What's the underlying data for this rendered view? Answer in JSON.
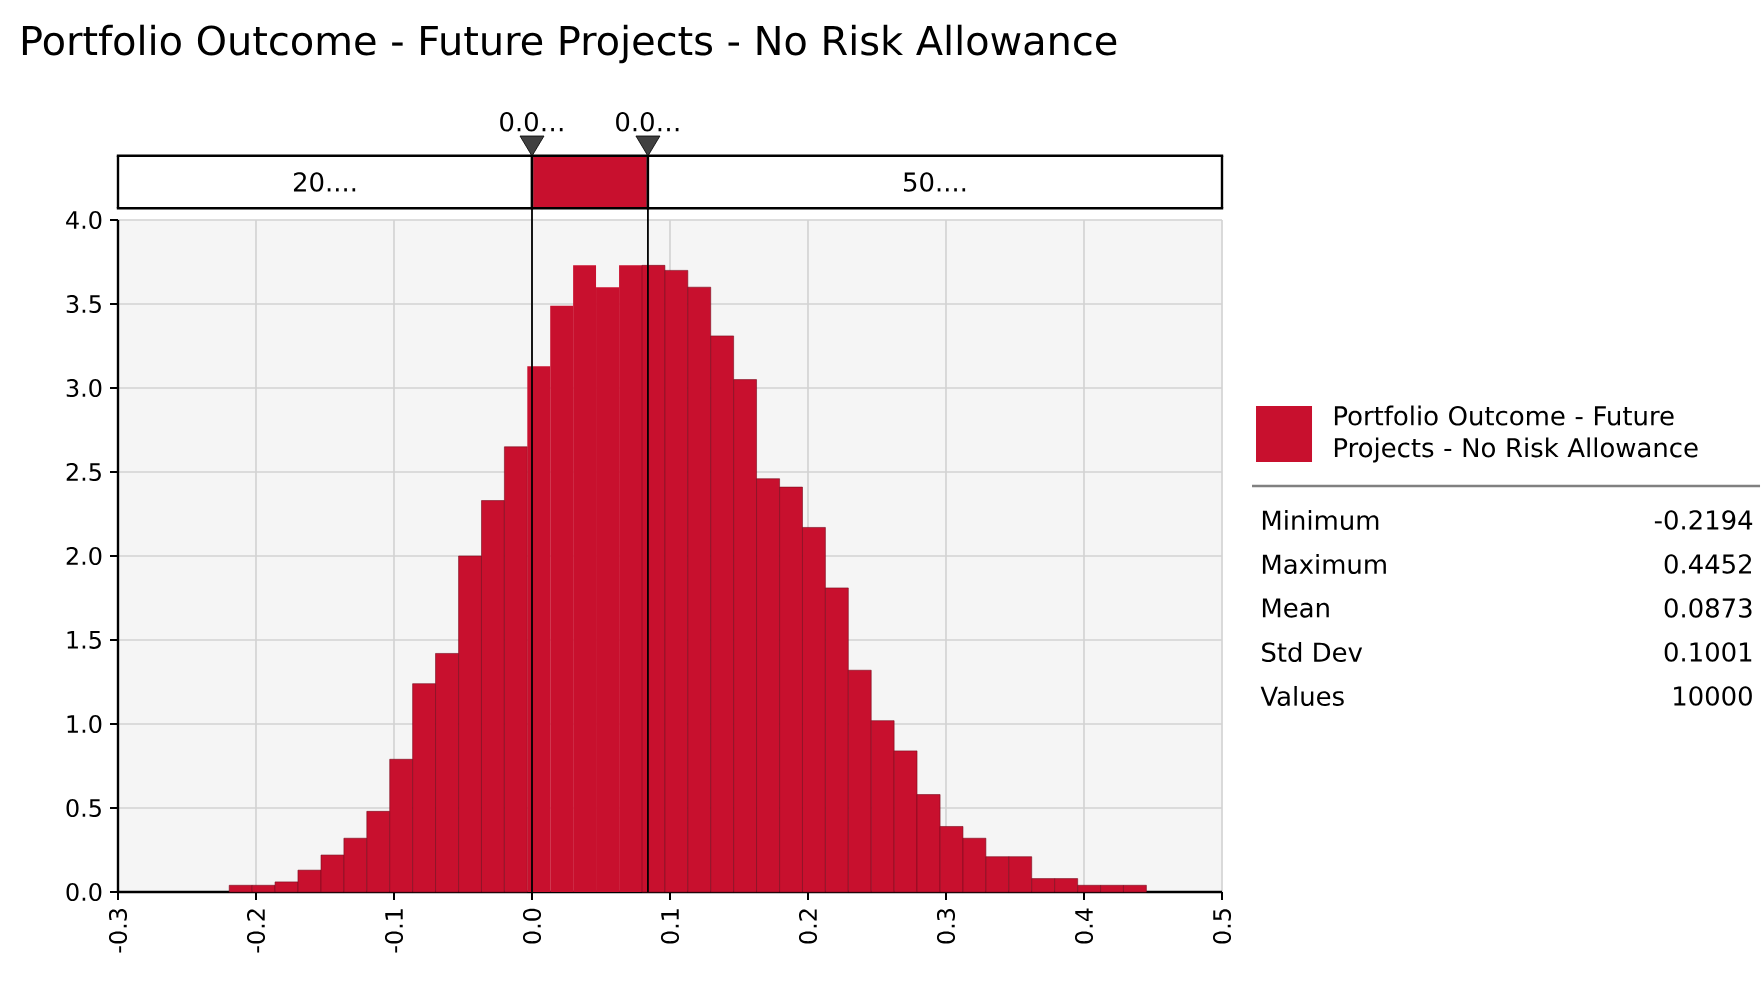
{
  "chart_data": {
    "type": "histogram",
    "title": "Portfolio Outcome - Future Projects - No Risk Allowance",
    "bins": [
      -0.2194,
      -0.2028,
      -0.1862,
      -0.1696,
      -0.1529,
      -0.1363,
      -0.1197,
      -0.1031,
      -0.0865,
      -0.0699,
      -0.0532,
      -0.0366,
      -0.02,
      -0.0034,
      0.0132,
      0.0298,
      0.0464,
      0.0631,
      0.0797,
      0.0963,
      0.1129,
      0.1295,
      0.1461,
      0.1627,
      0.1794,
      0.196,
      0.2126,
      0.2292,
      0.2458,
      0.2624,
      0.279,
      0.2957,
      0.3123,
      0.3289,
      0.3455,
      0.3621,
      0.3787,
      0.3954,
      0.412,
      0.4286,
      0.4452
    ],
    "series": [
      {
        "name": "Portfolio Outcome - Future Projects - No Risk Allowance",
        "color": "#c8102e",
        "values": [
          0.04,
          0.04,
          0.06,
          0.13,
          0.22,
          0.32,
          0.48,
          0.79,
          1.24,
          1.42,
          2.0,
          2.33,
          2.65,
          3.13,
          3.49,
          3.73,
          3.6,
          3.73,
          3.73,
          3.7,
          3.6,
          3.31,
          3.05,
          2.46,
          2.41,
          2.17,
          1.81,
          1.32,
          1.02,
          0.84,
          0.58,
          0.39,
          0.32,
          0.21,
          0.21,
          0.08,
          0.08,
          0.04,
          0.04,
          0.04
        ]
      }
    ],
    "xlim": [
      -0.3,
      0.5
    ],
    "ylim": [
      0,
      4.0
    ],
    "xticks": [
      -0.3,
      -0.2,
      -0.1,
      {
        "value": 0,
        "label": "0.0"
      },
      0.1,
      0.2,
      0.3,
      0.4,
      0.5
    ],
    "yticks": [
      {
        "value": 0,
        "label": "0.0"
      },
      0.5,
      {
        "value": 1,
        "label": "1.0"
      },
      1.5,
      {
        "value": 2,
        "label": "2.0"
      },
      2.5,
      {
        "value": 3,
        "label": "3.0"
      },
      3.5,
      {
        "value": 4,
        "label": "4.0"
      }
    ],
    "grid": true,
    "legend": "right",
    "ref_lines": [
      {
        "axis": "x",
        "value": 0,
        "label": "0.0…",
        "color": "#000000"
      },
      {
        "axis": "x",
        "value": 0.084,
        "label": "0.0…",
        "color": "#000000"
      }
    ],
    "annotations": [
      "20....",
      "50....",
      "Minimum",
      "-0.2194",
      "Maximum",
      "0.4452",
      "Mean",
      "0.0873",
      "Std Dev",
      "0.1001",
      "Values",
      "10000"
    ]
  }
}
